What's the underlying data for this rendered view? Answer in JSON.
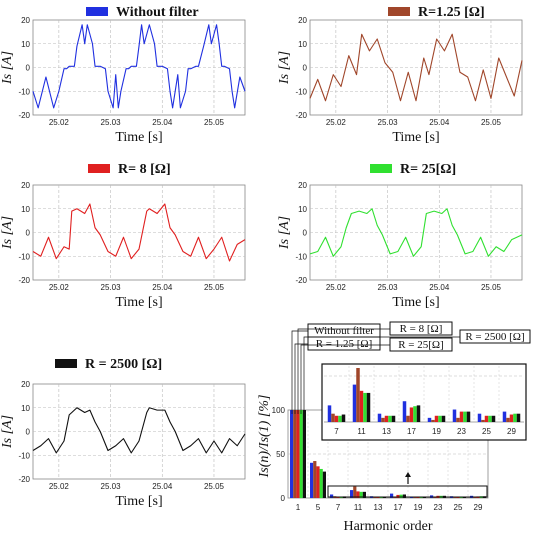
{
  "chart_data": [
    {
      "type": "line",
      "legend": "Without filter",
      "color": "#2030e0",
      "xlabel": "Time [s]",
      "ylabel": "Is [A]",
      "xlim": [
        25.015,
        25.056
      ],
      "ylim": [
        -20,
        20
      ],
      "xticks": [
        "25.02",
        "25.03",
        "25.04",
        "25.05"
      ],
      "yticks": [
        "-20",
        "-10",
        "0",
        "10",
        "20"
      ],
      "x": [
        25.015,
        25.016,
        25.0175,
        25.019,
        25.02,
        25.021,
        25.0215,
        25.022,
        25.023,
        25.0235,
        25.0245,
        25.025,
        25.0255,
        25.0265,
        25.027,
        25.028,
        25.029,
        25.0295,
        25.0305,
        25.031,
        25.0315,
        25.032,
        25.033,
        25.0335,
        25.034,
        25.035,
        25.0355,
        25.036,
        25.0365,
        25.0375,
        25.0385,
        25.039,
        25.04,
        25.041,
        25.0415,
        25.042,
        25.043,
        25.0435,
        25.0445,
        25.045,
        25.0455,
        25.0465,
        25.047,
        25.048,
        25.049,
        25.0495,
        25.0505,
        25.051,
        25.0515,
        25.052,
        25.053,
        25.0535,
        25.054,
        25.055,
        25.056
      ],
      "y": [
        -10,
        -17,
        -4,
        -17,
        -10,
        -0.5,
        -0.5,
        0.5,
        0.5,
        9,
        18,
        10,
        18,
        10,
        0.5,
        0.5,
        -0.5,
        -10,
        -17,
        -3,
        -17,
        -10,
        -0.5,
        -0.5,
        0.5,
        0.5,
        9,
        18,
        10,
        18,
        10,
        0.5,
        0.5,
        -0.5,
        -10,
        -17,
        -3,
        -17,
        -10,
        -0.5,
        -0.5,
        0.5,
        0.5,
        9,
        18,
        10,
        18,
        10,
        0.5,
        0.5,
        -0.5,
        -10,
        -17,
        -4,
        -10
      ]
    },
    {
      "type": "line",
      "legend": "R=1.25 [Ω]",
      "color": "#a0462a",
      "xlabel": "Time [s]",
      "ylabel": "Is [A]",
      "xlim": [
        25.015,
        25.056
      ],
      "ylim": [
        -20,
        20
      ],
      "xticks": [
        "25.02",
        "25.03",
        "25.04",
        "25.05"
      ],
      "yticks": [
        "-20",
        "-10",
        "0",
        "10",
        "20"
      ],
      "x": [
        25.015,
        25.0165,
        25.018,
        25.0195,
        25.021,
        25.0225,
        25.024,
        25.025,
        25.0265,
        25.028,
        25.0295,
        25.031,
        25.0325,
        25.034,
        25.0355,
        25.037,
        25.038,
        25.0395,
        25.041,
        25.0425,
        25.044,
        25.0455,
        25.047,
        25.0485,
        25.05,
        25.0515,
        25.053,
        25.0545,
        25.056
      ],
      "y": [
        -13,
        -5,
        -14,
        -3,
        -8,
        5,
        -3,
        14,
        7,
        12,
        2,
        -2,
        -14,
        -2,
        -14,
        4,
        -3,
        12,
        7,
        14,
        -2,
        -4,
        -14,
        -1,
        -13,
        4,
        -4,
        -12,
        3
      ]
    },
    {
      "type": "line",
      "legend": "R= 8 [Ω]",
      "color": "#e02020",
      "xlabel": "Time [s]",
      "ylabel": "Is [A]",
      "xlim": [
        25.015,
        25.056
      ],
      "ylim": [
        -20,
        20
      ],
      "xticks": [
        "25.02",
        "25.03",
        "25.04",
        "25.05"
      ],
      "yticks": [
        "-20",
        "-10",
        "0",
        "10",
        "20"
      ],
      "x": [
        25.015,
        25.0165,
        25.018,
        25.0195,
        25.021,
        25.022,
        25.0225,
        25.0235,
        25.025,
        25.026,
        25.027,
        25.028,
        25.0295,
        25.031,
        25.0325,
        25.034,
        25.0355,
        25.037,
        25.0375,
        25.039,
        25.0405,
        25.0415,
        25.0425,
        25.044,
        25.0455,
        25.047,
        25.0485,
        25.05,
        25.0515,
        25.053,
        25.0545,
        25.056
      ],
      "y": [
        -8,
        -10,
        -2,
        -11,
        -6,
        -7,
        9,
        10,
        8,
        12,
        2,
        -1,
        -8,
        -10,
        -2,
        -11,
        -7,
        9,
        10,
        8,
        12,
        2,
        -1,
        -8,
        -10,
        -2,
        -11,
        -7,
        -2,
        -12,
        -5,
        -3
      ]
    },
    {
      "type": "line",
      "legend": "R= 25[Ω]",
      "color": "#30e030",
      "xlabel": "Time [s]",
      "ylabel": "Is [A]",
      "xlim": [
        25.015,
        25.056
      ],
      "ylim": [
        -20,
        20
      ],
      "xticks": [
        "25.02",
        "25.03",
        "25.04",
        "25.05"
      ],
      "yticks": [
        "-20",
        "-10",
        "0",
        "10",
        "20"
      ],
      "x": [
        25.015,
        25.0165,
        25.018,
        25.0195,
        25.021,
        25.022,
        25.023,
        25.0245,
        25.026,
        25.027,
        25.028,
        25.029,
        25.0305,
        25.032,
        25.0335,
        25.035,
        25.0365,
        25.0375,
        25.039,
        25.0405,
        25.0415,
        25.0425,
        25.0435,
        25.045,
        25.0465,
        25.048,
        25.0495,
        25.051,
        25.0525,
        25.054,
        25.056
      ],
      "y": [
        -9,
        -8,
        -2,
        -10,
        -6,
        2,
        8,
        9,
        8,
        10,
        3,
        -1,
        -9,
        -8,
        -2,
        -10,
        -6,
        8,
        9,
        8,
        10,
        3,
        -1,
        -9,
        -8,
        -2,
        -10,
        -6,
        -8,
        -3,
        -1
      ]
    },
    {
      "type": "line",
      "legend": "R = 2500 [Ω]",
      "color": "#111111",
      "xlabel": "Time [s]",
      "ylabel": "Is [A]",
      "xlim": [
        25.015,
        25.056
      ],
      "ylim": [
        -20,
        20
      ],
      "xticks": [
        "25.02",
        "25.03",
        "25.04",
        "25.05"
      ],
      "yticks": [
        "-20",
        "-10",
        "0",
        "10",
        "20"
      ],
      "x": [
        25.015,
        25.0165,
        25.018,
        25.0195,
        25.021,
        25.022,
        25.0235,
        25.025,
        25.026,
        25.027,
        25.028,
        25.0295,
        25.031,
        25.0325,
        25.034,
        25.0355,
        25.037,
        25.0375,
        25.039,
        25.0405,
        25.0415,
        25.0425,
        25.044,
        25.0455,
        25.047,
        25.0485,
        25.05,
        25.0515,
        25.053,
        25.0545,
        25.056
      ],
      "y": [
        -8,
        -6,
        -3,
        -9,
        -4,
        7,
        10,
        8,
        9,
        4,
        0,
        -8,
        -6,
        -3,
        -9,
        -4,
        8,
        10,
        9,
        9,
        4,
        0,
        -8,
        -6,
        -3,
        -9,
        -4,
        -9,
        -3,
        -6,
        -1
      ]
    },
    {
      "type": "bar",
      "xlabel": "Harmonic order",
      "ylabel": "Is(n)/Is(1) [%]",
      "ylim": [
        0,
        100
      ],
      "yticks": [
        "0",
        "50",
        "100"
      ],
      "categories": [
        "1",
        "5",
        "7",
        "11",
        "13",
        "17",
        "19",
        "23",
        "25",
        "29"
      ],
      "colors": [
        "#2030e0",
        "#a0462a",
        "#e02020",
        "#30e030",
        "#111111"
      ],
      "series": [
        {
          "name": "Without filter",
          "values": [
            100,
            40,
            4,
            9,
            2,
            5,
            1,
            3,
            2,
            2.5
          ]
        },
        {
          "name": "R = 1.25 [Ω]",
          "values": [
            100,
            42,
            2,
            13,
            1,
            1.5,
            0.5,
            1,
            0.5,
            1
          ]
        },
        {
          "name": "R = 8 [Ω]",
          "values": [
            100,
            36,
            1.5,
            7.5,
            1.5,
            3.5,
            1.5,
            2.5,
            1.5,
            1.8
          ]
        },
        {
          "name": "R = 25[Ω]",
          "values": [
            100,
            33,
            1.5,
            7,
            1.5,
            3.8,
            1.5,
            2.5,
            1.5,
            2
          ]
        },
        {
          "name": "R = 2500 [Ω]",
          "values": [
            100,
            30,
            1.8,
            7,
            1.5,
            4,
            1.5,
            2.5,
            1.5,
            2
          ]
        }
      ],
      "inset": {
        "categories": [
          "7",
          "11",
          "13",
          "17",
          "19",
          "23",
          "25",
          "29"
        ],
        "ylim": [
          0,
          13
        ]
      }
    }
  ]
}
